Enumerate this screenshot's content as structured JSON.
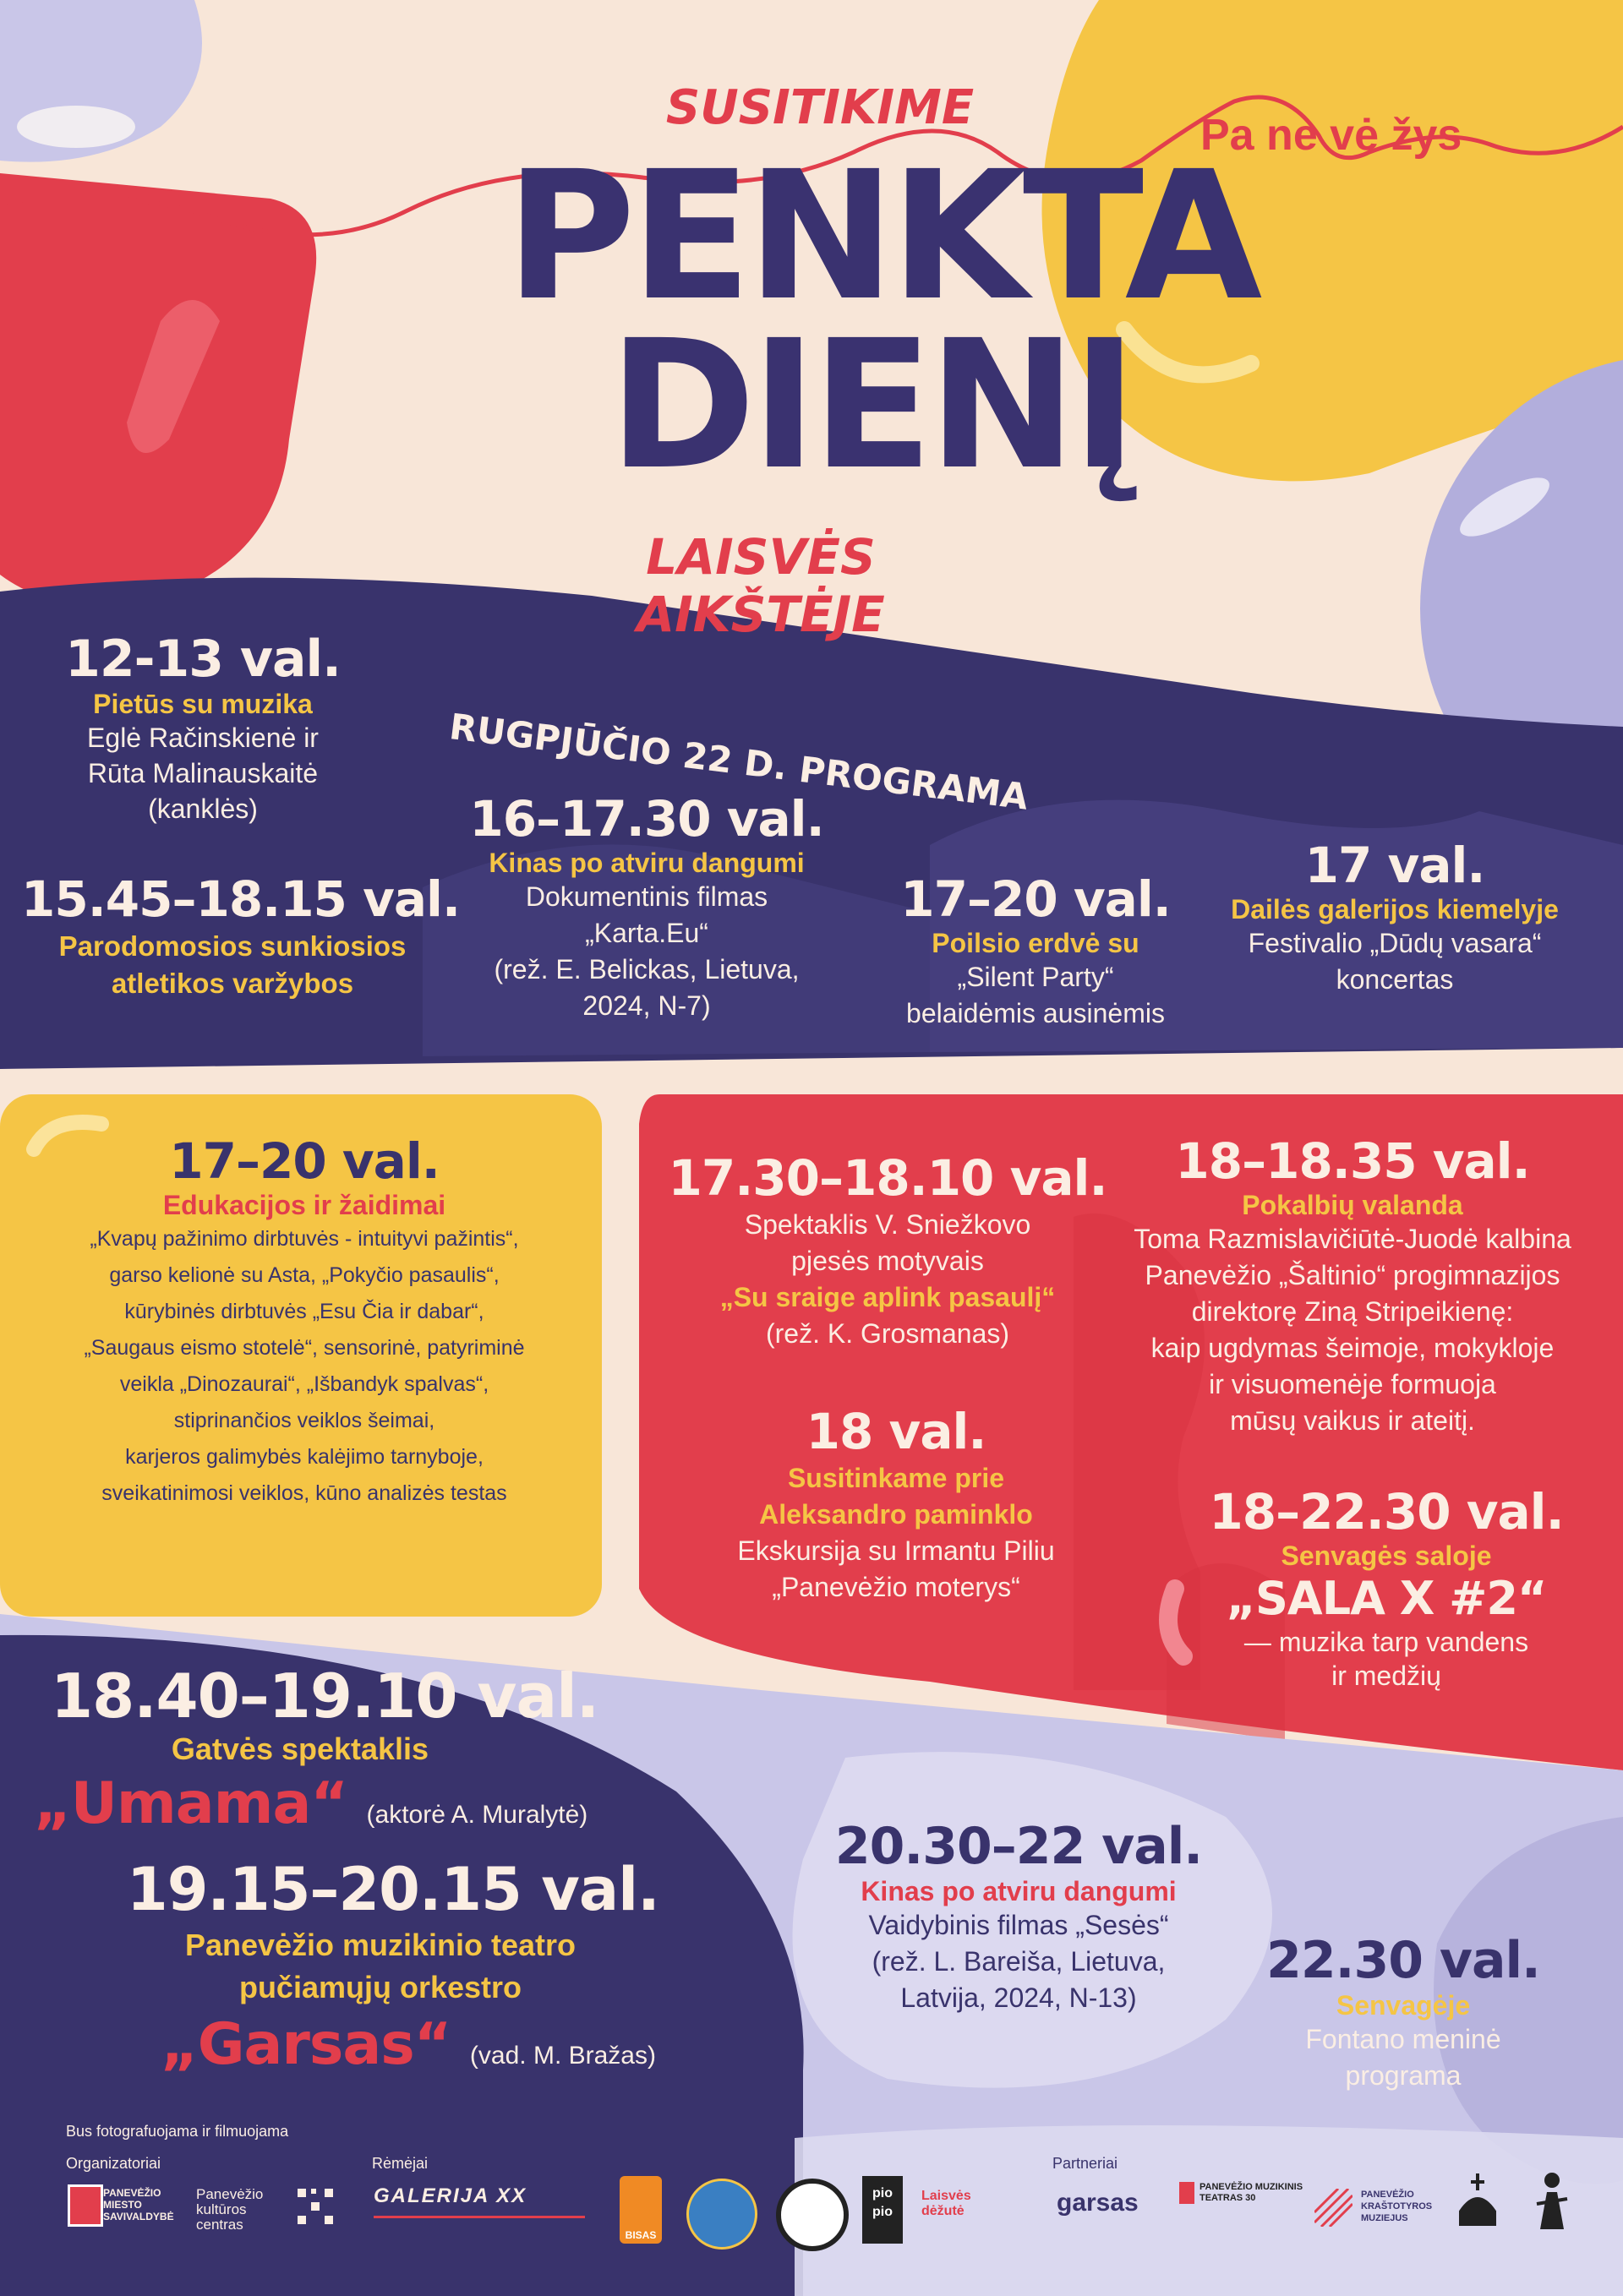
{
  "header": {
    "over_title": "SUSITIKIME",
    "title_line1": "PENKTA",
    "title_line2": "DIENĮ",
    "under_title": "LAISVĖS AIKŠTĖJE",
    "city": "Pa ne vė žys"
  },
  "program_title": "RUGPJŪČIO 22 D. PROGRAMA",
  "events": {
    "e1": {
      "time": "12-13 val.",
      "name": "Pietūs su muzika",
      "lines": [
        "Eglė Račinskienė ir",
        "Rūta Malinauskaitė",
        "(kanklės)"
      ]
    },
    "e2": {
      "time": "15.45–18.15 val.",
      "name_lines": [
        "Parodomosios sunkiosios",
        "atletikos varžybos"
      ]
    },
    "e3": {
      "time": "16–17.30 val.",
      "name": "Kinas po atviru dangumi",
      "lines": [
        "Dokumentinis filmas",
        "„Karta.Eu“",
        "(rež. E. Belickas, Lietuva,",
        "2024, N-7)"
      ]
    },
    "e4": {
      "time": "17–20 val.",
      "name": "Poilsio erdvė su",
      "lines": [
        "„Silent Party“",
        "belaidėmis ausinėmis"
      ]
    },
    "e5": {
      "time": "17 val.",
      "name": "Dailės galerijos kiemelyje",
      "lines": [
        "Festivalio „Dūdų vasara“",
        "koncertas"
      ]
    },
    "e6": {
      "time": "17–20 val.",
      "name": "Edukacijos ir žaidimai",
      "lines": [
        "„Kvapų pažinimo dirbtuvės - intuityvi pažintis“,",
        "garso kelionė su Asta, „Pokyčio pasaulis“,",
        "kūrybinės dirbtuvės „Esu Čia ir dabar“,",
        "„Saugaus eismo stotelė“, sensorinė, patyriminė",
        "veikla „Dinozaurai“, „Išbandyk spalvas“,",
        "stiprinančios veiklos šeimai,",
        "karjeros galimybės kalėjimo tarnyboje,",
        "sveikatinimosi veiklos, kūno analizės testas"
      ]
    },
    "e7": {
      "time": "17.30–18.10 val.",
      "lines": [
        "Spektaklis V. Sniežkovo",
        "pjesės motyvais"
      ],
      "highlight": "„Su sraige aplink pasaulį“",
      "note": "(rež. K. Grosmanas)"
    },
    "e8": {
      "time": "18 val.",
      "name_lines": [
        "Susitinkame prie",
        "Aleksandro paminklo"
      ],
      "lines": [
        "Ekskursija su Irmantu Piliu",
        "„Panevėžio moterys“"
      ]
    },
    "e9": {
      "time": "18–18.35 val.",
      "name": "Pokalbių valanda",
      "lines": [
        "Toma Razmislavičiūtė-Juodė kalbina",
        "Panevėžio „Šaltinio“ progimnazijos",
        "direktorę Ziną Stripeikienę:",
        "kaip ugdymas šeimoje, mokykloje",
        "ir visuomenėje formuoja",
        "mūsų vaikus ir ateitį."
      ]
    },
    "e10": {
      "time": "18–22.30 val.",
      "name": "Senvagės saloje",
      "highlight": "„SALA X #2“",
      "lines": [
        "— muzika tarp vandens",
        "ir medžių"
      ]
    },
    "e11": {
      "time": "18.40–19.10 val.",
      "name": "Gatvės spektaklis",
      "highlight": "„Umama“",
      "note": "(aktorė A. Muralytė)"
    },
    "e12": {
      "time": "19.15–20.15 val.",
      "name_lines": [
        "Panevėžio muzikinio teatro",
        "pučiamųjų orkestro"
      ],
      "highlight": "„Garsas“",
      "note": "(vad. M. Bražas)"
    },
    "e13": {
      "time": "20.30–22 val.",
      "name": "Kinas po atviru dangumi",
      "lines": [
        "Vaidybinis filmas „Sesės“",
        "(rež. L. Bareiša, Lietuva,",
        "Latvija, 2024, N-13)"
      ]
    },
    "e14": {
      "time": "22.30 val.",
      "name": "Senvagėje",
      "lines": [
        "Fontano meninė",
        "programa"
      ]
    }
  },
  "footer": {
    "notice": "Bus fotografuojama ir filmuojama",
    "organizers_label": "Organizatoriai",
    "sponsors_label": "Rėmėjai",
    "partners_label": "Partneriai",
    "logos": {
      "savivaldybe": "PANEVĖŽIO MIESTO SAVIVALDYBĖ",
      "kulturos": "Panevėžio kultūros centras",
      "galerija": "GALERIJA XX",
      "bisas": "BISAS",
      "pio": "pio pio",
      "laisves": "Laisvės dėžutė",
      "garsas": "garsas",
      "teatras": "PANEVĖŽIO MUZIKINIS TEATRAS 30",
      "muziejus": "PANEVĖŽIO KRAŠTOTYROS MUZIEJUS"
    }
  },
  "colors": {
    "navy": "#39336c",
    "red": "#e23e4c",
    "yellow": "#f5c545",
    "cream": "#f8e6d8",
    "lavender": "#c9c6e8"
  }
}
